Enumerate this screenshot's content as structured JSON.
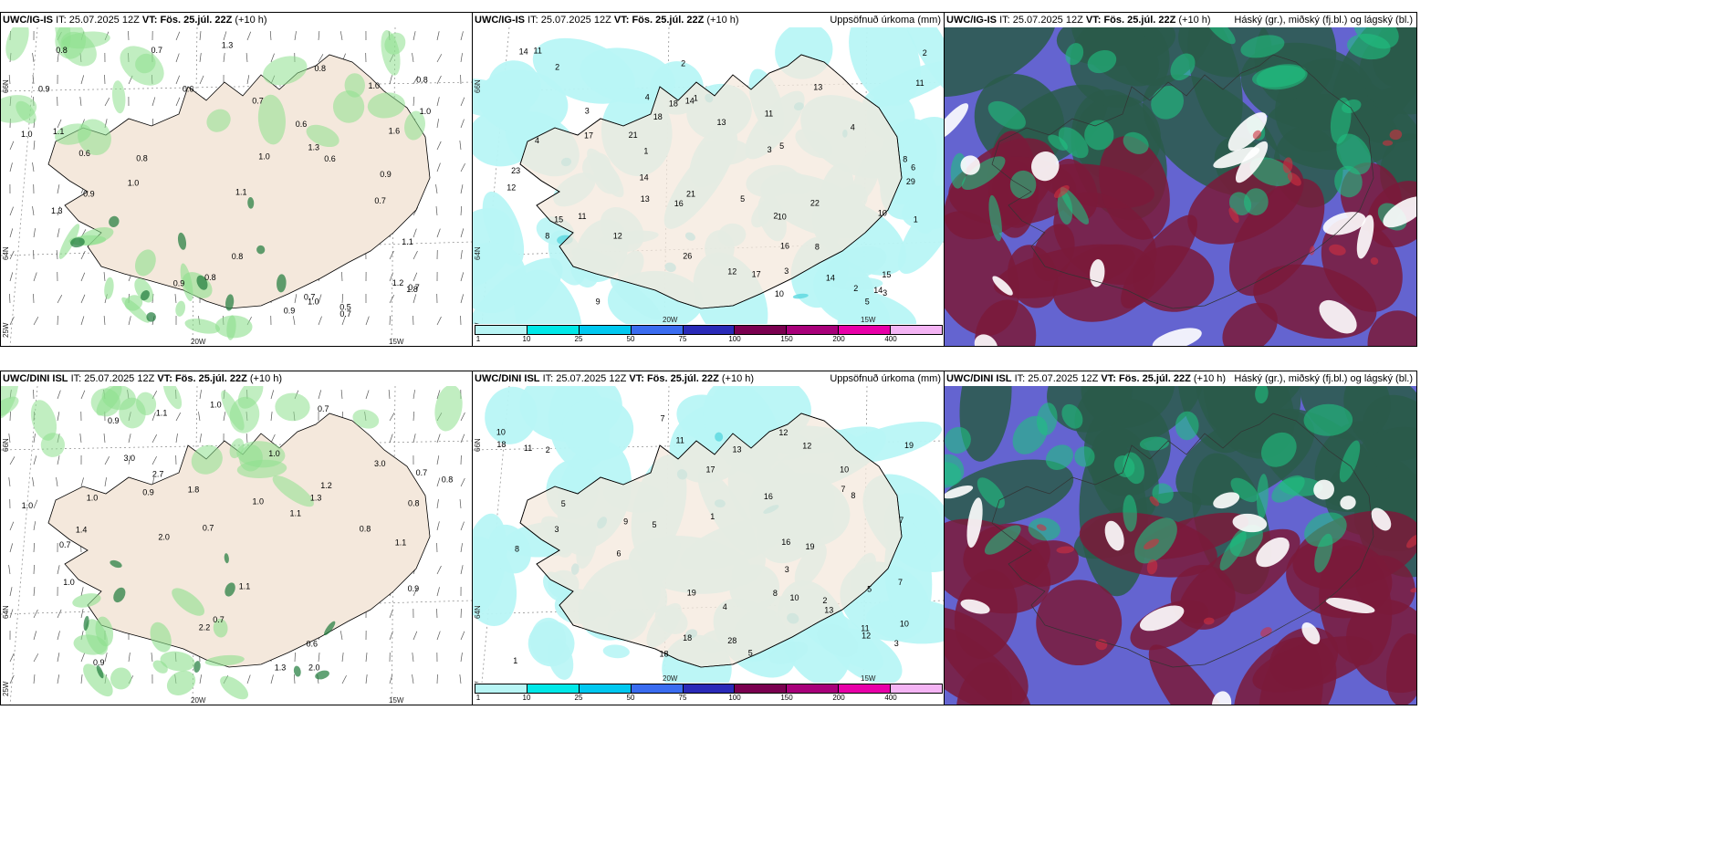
{
  "rows": [
    {
      "model": "UWC/IG-IS",
      "it_label": "IT:",
      "it_value": "25.07.2025 12Z",
      "vt_label": "VT:",
      "vt_value": "Fös. 25.júl. 22Z",
      "lead": "(+10 h)",
      "wind_labels": [
        "0.7",
        "0.8",
        "0.9",
        "0.7",
        "1.0",
        "0.5",
        "0.9",
        "0.9",
        "0.6",
        "1.0",
        "0.8",
        "1.2",
        "0.8",
        "1.0",
        "0.7",
        "0.8",
        "0.6",
        "0.9",
        "1.1",
        "0.7",
        "1.0",
        "1.6",
        "0.6",
        "0.7",
        "1.0",
        "0.9",
        "1.1",
        "0.8",
        "1.3",
        "1.3",
        "0.6",
        "1.0",
        "0.8",
        "1.1",
        "1.3",
        "0.7",
        "1.8"
      ],
      "precip_labels": [
        "4",
        "1",
        "2",
        "11",
        "2",
        "1",
        "22",
        "21",
        "14",
        "12",
        "14",
        "14",
        "26",
        "14",
        "9",
        "12",
        "11",
        "13",
        "10",
        "11",
        "15",
        "17",
        "18",
        "23",
        "8",
        "5",
        "13",
        "10",
        "2",
        "2",
        "3",
        "3",
        "14",
        "8",
        "15",
        "17",
        "13",
        "29",
        "21",
        "16",
        "11",
        "18",
        "16",
        "12",
        "4",
        "8",
        "2",
        "3",
        "5",
        "10",
        "6",
        "3",
        "5",
        "4",
        "1"
      ],
      "precip_title": "Uppsöfnuð úrkoma (mm)",
      "cloud_title": "Háský (gr.), miðský (fj.bl.) og lágský (bl.)"
    },
    {
      "model": "UWC/DINI ISL",
      "it_label": "IT:",
      "it_value": "25.07.2025 12Z",
      "vt_label": "VT:",
      "vt_value": "Fös. 25.júl. 22Z",
      "lead": "(+10 h)",
      "wind_labels": [
        "0.9",
        "1.8",
        "1.1",
        "1.0",
        "2.7",
        "3.0",
        "0.9",
        "0.6",
        "1.1",
        "1.0",
        "0.8",
        "1.2",
        "0.7",
        "1.0",
        "0.9",
        "3.0",
        "2.0",
        "0.7",
        "0.8",
        "0.7",
        "1.0",
        "0.9",
        "1.1",
        "1.3",
        "1.1",
        "1.3",
        "0.7",
        "1.4",
        "2.0",
        "1.0",
        "2.2",
        "1.0",
        "0.8",
        "0.7"
      ],
      "precip_labels": [
        "3",
        "19",
        "5",
        "7",
        "11",
        "10",
        "18",
        "12",
        "19",
        "8",
        "6",
        "9",
        "5",
        "17",
        "13",
        "10",
        "10",
        "18",
        "11",
        "28",
        "12",
        "5",
        "8",
        "2",
        "13",
        "16",
        "11",
        "10",
        "12",
        "7",
        "8",
        "4",
        "3",
        "18",
        "19",
        "16",
        "5",
        "7",
        "2",
        "1",
        "3",
        "1",
        "7"
      ],
      "precip_title": "Uppsöfnuð úrkoma (mm)",
      "cloud_title": "Háský (gr.), miðský (fj.bl.) og lágský (bl.)"
    }
  ],
  "axes": {
    "lat_top": "66N",
    "lat_mid": "64N",
    "lon_left": "25W",
    "lon_mid": "20W",
    "lon_right": "15W"
  },
  "legend": {
    "ticks": [
      "1",
      "10",
      "25",
      "50",
      "75",
      "100",
      "150",
      "200",
      "400"
    ],
    "colors": [
      "#b8f5f5",
      "#00e8e8",
      "#00c8f0",
      "#3a6cf0",
      "#2a2ab8",
      "#7a0050",
      "#a8007a",
      "#e800a8",
      "#f4b4f4"
    ]
  },
  "colors": {
    "land": "#f4e8dc",
    "precip_light": "#b8f5f5",
    "wind_green": "#8ee08e",
    "wind_dark": "#1e7a3a",
    "cloud_high": "#2a5a4a",
    "cloud_mid": "#6464d0",
    "cloud_low": "#7a1a3a",
    "cloud_teal": "#20c080"
  }
}
